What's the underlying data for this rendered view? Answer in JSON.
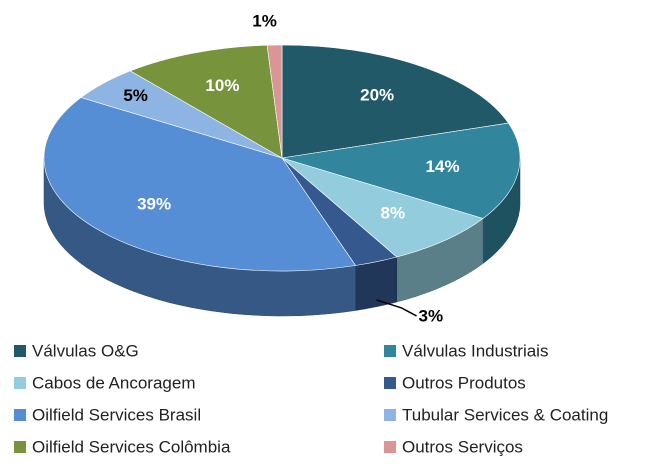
{
  "chart_data": {
    "type": "pie3d",
    "categories": [
      "Válvulas O&G",
      "Válvulas Industriais",
      "Cabos de Ancoragem",
      "Outros Produtos",
      "Oilfield Services Brasil",
      "Tubular Services &  Coating",
      "Oilfield Services Colômbia",
      "Outros Serviços"
    ],
    "values": [
      20,
      14,
      8,
      3,
      39,
      5,
      10,
      1
    ],
    "value_labels": [
      "20%",
      "14%",
      "8%",
      "3%",
      "39%",
      "5%",
      "10%",
      "1%"
    ],
    "colors": [
      "#215968",
      "#31859c",
      "#93cddd",
      "#35598f",
      "#558ed5",
      "#8eb4e3",
      "#77933c",
      "#d99694"
    ],
    "legend": "bottom"
  }
}
